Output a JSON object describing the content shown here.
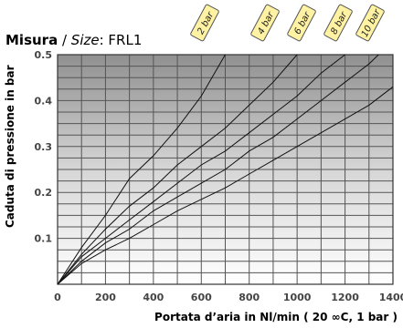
{
  "chart_data": {
    "type": "line",
    "title_bold": "Misura",
    "title_sep": " / ",
    "title_italic": "Size",
    "title_rest": ": FRL1",
    "ylabel": "Caduta di pressione in bar",
    "xlabel": "Portata d’aria in Nl/min ( 20 ∞C, 1 bar )",
    "xlim": [
      0,
      1400
    ],
    "ylim": [
      0,
      0.5
    ],
    "x_ticks": [
      "0",
      "200",
      "400",
      "600",
      "800",
      "1000",
      "1200",
      "1400"
    ],
    "y_ticks": [
      "0.1",
      "0.2",
      "0.3",
      "0.4",
      "0.5"
    ],
    "grid": true,
    "series": [
      {
        "name": "2 bar",
        "points": [
          [
            0,
            0
          ],
          [
            100,
            0.08
          ],
          [
            200,
            0.15
          ],
          [
            300,
            0.23
          ],
          [
            400,
            0.28
          ],
          [
            500,
            0.34
          ],
          [
            600,
            0.41
          ],
          [
            700,
            0.5
          ]
        ]
      },
      {
        "name": "4 bar",
        "points": [
          [
            0,
            0
          ],
          [
            100,
            0.065
          ],
          [
            200,
            0.12
          ],
          [
            300,
            0.17
          ],
          [
            400,
            0.21
          ],
          [
            500,
            0.26
          ],
          [
            600,
            0.3
          ],
          [
            700,
            0.34
          ],
          [
            800,
            0.39
          ],
          [
            900,
            0.44
          ],
          [
            1000,
            0.5
          ]
        ]
      },
      {
        "name": "6 bar",
        "points": [
          [
            0,
            0
          ],
          [
            100,
            0.06
          ],
          [
            200,
            0.1
          ],
          [
            300,
            0.14
          ],
          [
            400,
            0.18
          ],
          [
            500,
            0.22
          ],
          [
            600,
            0.26
          ],
          [
            700,
            0.29
          ],
          [
            800,
            0.33
          ],
          [
            900,
            0.37
          ],
          [
            1000,
            0.41
          ],
          [
            1100,
            0.46
          ],
          [
            1200,
            0.5
          ]
        ]
      },
      {
        "name": "8 bar",
        "points": [
          [
            0,
            0
          ],
          [
            100,
            0.05
          ],
          [
            200,
            0.09
          ],
          [
            300,
            0.12
          ],
          [
            400,
            0.16
          ],
          [
            500,
            0.19
          ],
          [
            600,
            0.22
          ],
          [
            700,
            0.25
          ],
          [
            800,
            0.29
          ],
          [
            900,
            0.32
          ],
          [
            1000,
            0.36
          ],
          [
            1100,
            0.4
          ],
          [
            1200,
            0.44
          ],
          [
            1300,
            0.48
          ],
          [
            1340,
            0.5
          ]
        ]
      },
      {
        "name": "10 bar",
        "points": [
          [
            0,
            0
          ],
          [
            100,
            0.045
          ],
          [
            200,
            0.075
          ],
          [
            300,
            0.1
          ],
          [
            400,
            0.13
          ],
          [
            500,
            0.16
          ],
          [
            600,
            0.185
          ],
          [
            700,
            0.21
          ],
          [
            800,
            0.24
          ],
          [
            900,
            0.27
          ],
          [
            1000,
            0.3
          ],
          [
            1100,
            0.33
          ],
          [
            1200,
            0.36
          ],
          [
            1300,
            0.39
          ],
          [
            1400,
            0.43
          ]
        ]
      }
    ]
  },
  "colors": {
    "grid": "#555555",
    "label_bg": "#fff3a3",
    "label_border": "#555555",
    "axis_text": "#444444"
  }
}
